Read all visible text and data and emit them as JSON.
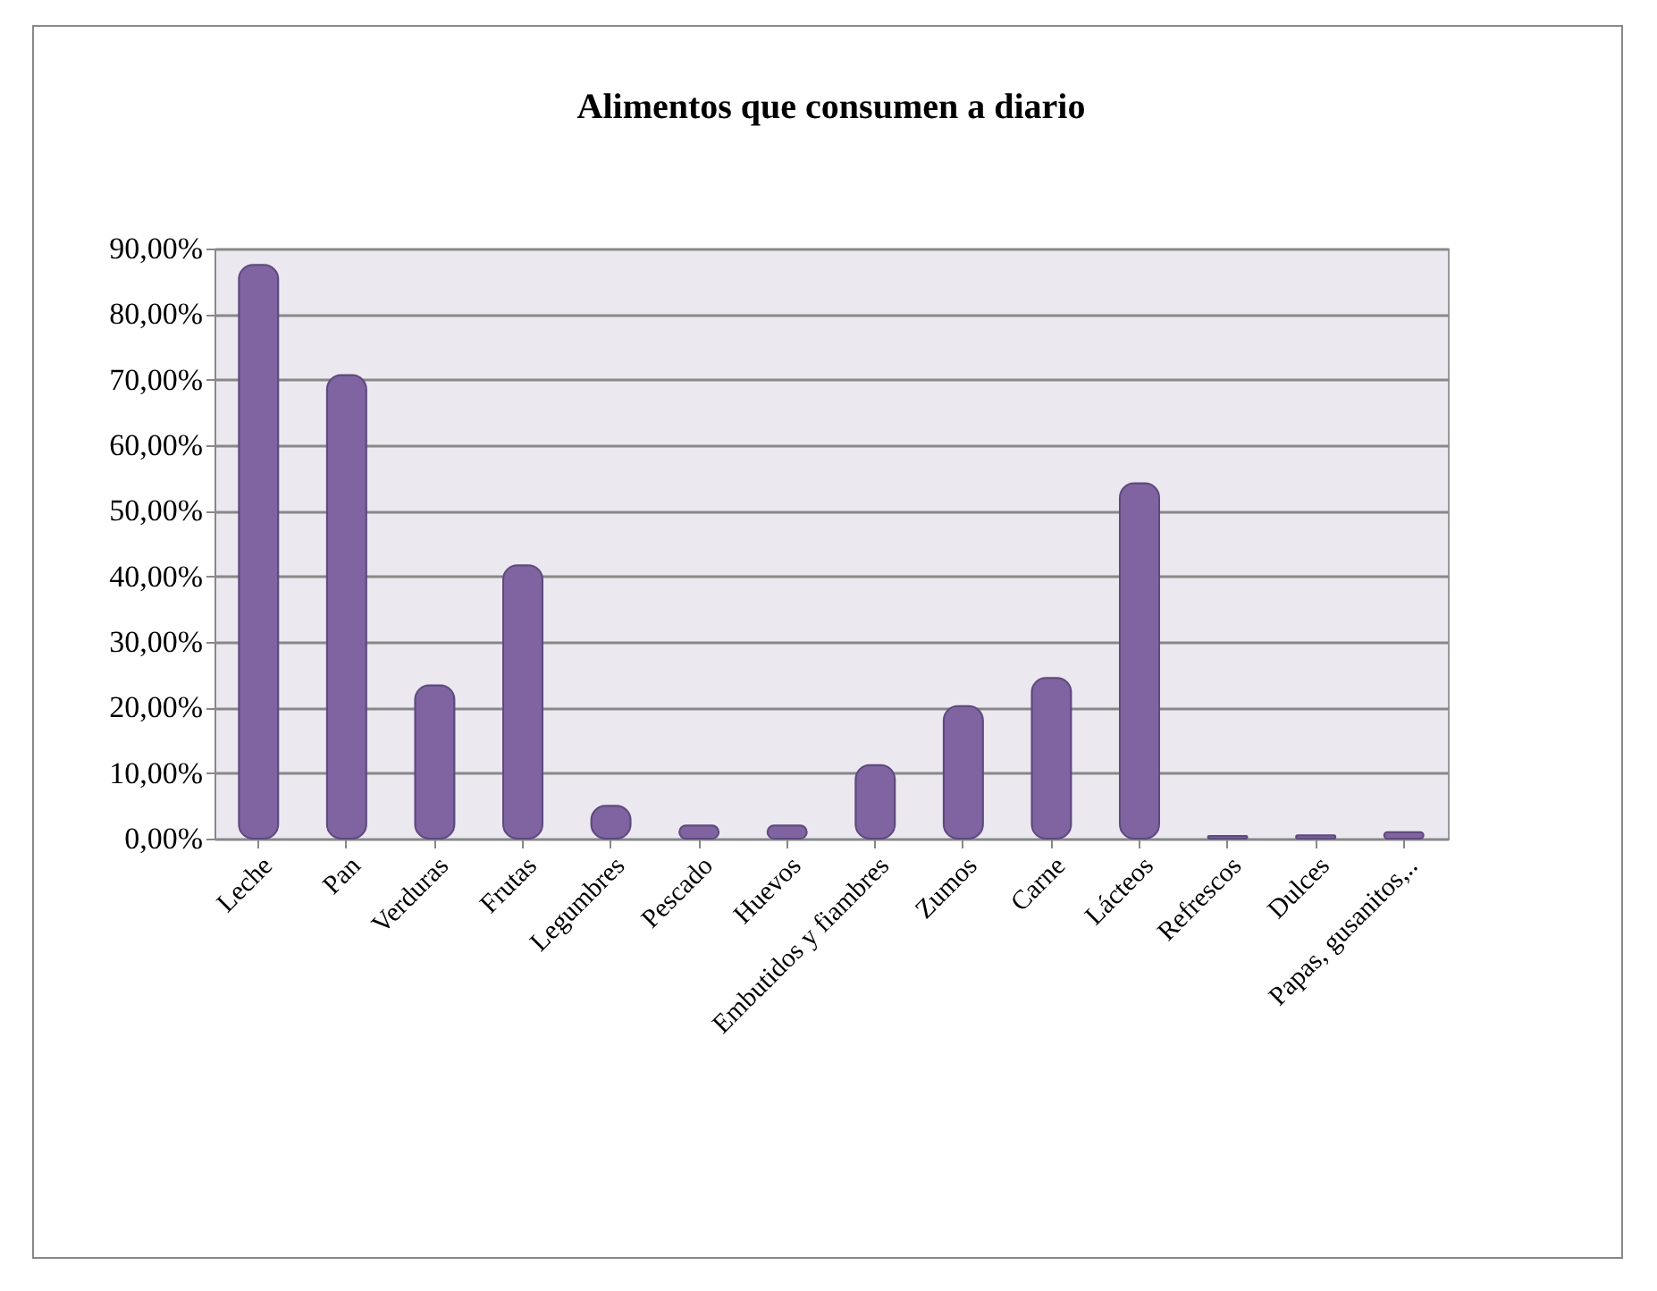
{
  "chart_data": {
    "type": "bar",
    "title": "Alimentos que consumen a diario",
    "categories": [
      "Leche",
      "Pan",
      "Verduras",
      "Frutas",
      "Legumbres",
      "Pescado",
      "Huevos",
      "Embutidos y fiambres",
      "Zumos",
      "Carne",
      "Lácteos",
      "Refrescos",
      "Dulces",
      "Papas, gusanitos,.."
    ],
    "values": [
      87.5,
      70.7,
      23.4,
      41.7,
      5,
      2,
      2,
      11.2,
      20.2,
      24.5,
      54.2,
      0.4,
      0.5,
      1
    ],
    "color": "#8064a2",
    "ylim": [
      0,
      90
    ],
    "yticks": [
      {
        "value": 0,
        "label": "0,00%"
      },
      {
        "value": 10,
        "label": "10,00%"
      },
      {
        "value": 20,
        "label": "20,00%"
      },
      {
        "value": 30,
        "label": "30,00%"
      },
      {
        "value": 40,
        "label": "40,00%"
      },
      {
        "value": 50,
        "label": "50,00%"
      },
      {
        "value": 60,
        "label": "60,00%"
      },
      {
        "value": 70,
        "label": "70,00%"
      },
      {
        "value": 80,
        "label": "80,00%"
      },
      {
        "value": 90,
        "label": "90,00%"
      }
    ],
    "grid": "y"
  }
}
